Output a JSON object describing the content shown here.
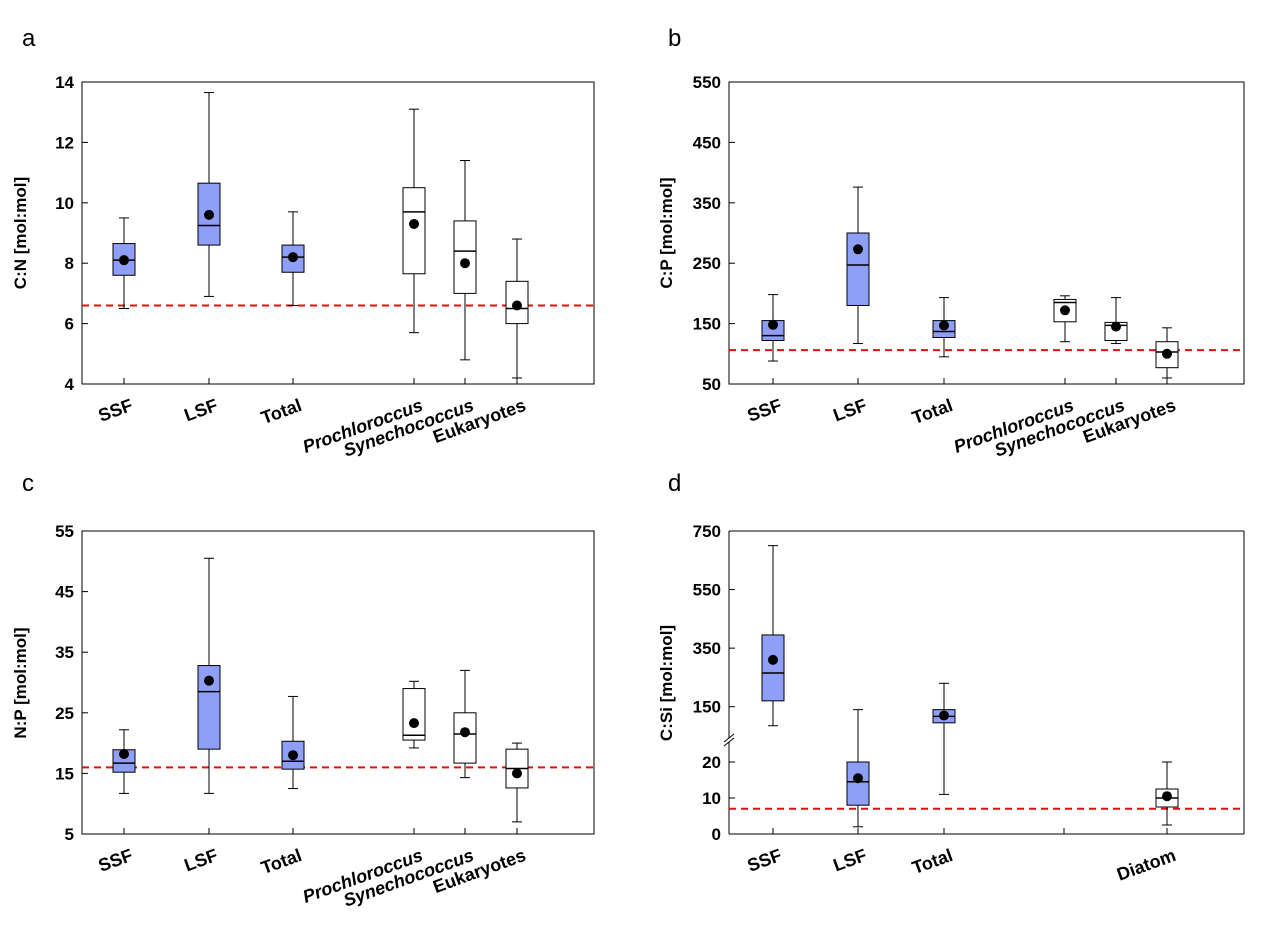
{
  "panels": [
    {
      "letter": "a",
      "ylabel": "C:N [mol:mol]"
    },
    {
      "letter": "b",
      "ylabel": "C:P [mol:mol]"
    },
    {
      "letter": "c",
      "ylabel": "N:P [mol:mol]"
    },
    {
      "letter": "d",
      "ylabel": "C:Si [mol:mol]"
    }
  ],
  "colors": {
    "filled_box": "#8f9ef7",
    "open_box": "#ffffff",
    "reference_line": "#e01010",
    "mean_marker": "#000000"
  },
  "chart_data": [
    {
      "type": "box",
      "panel": "a",
      "ylabel": "C:N [mol:mol]",
      "ylim": [
        4,
        14
      ],
      "yticks": [
        4,
        6,
        8,
        10,
        12,
        14
      ],
      "reference_line": 6.6,
      "categories": [
        "SSF",
        "LSF",
        "Total",
        "Prochloroccus",
        "Synechococcus",
        "Eukaryotes"
      ],
      "italic": [
        false,
        false,
        false,
        true,
        true,
        false
      ],
      "filled": [
        true,
        true,
        true,
        false,
        false,
        false
      ],
      "whisker_low": [
        6.5,
        6.9,
        6.6,
        5.7,
        4.8,
        4.2
      ],
      "q1": [
        7.6,
        8.6,
        7.7,
        7.65,
        7.0,
        6.0
      ],
      "median": [
        8.1,
        9.25,
        8.2,
        9.7,
        8.4,
        6.5
      ],
      "q3": [
        8.65,
        10.65,
        8.6,
        10.5,
        9.4,
        7.4
      ],
      "whisker_high": [
        9.5,
        13.65,
        9.7,
        13.1,
        11.4,
        8.8
      ],
      "mean": [
        8.1,
        9.6,
        8.2,
        9.3,
        8.0,
        6.6
      ]
    },
    {
      "type": "box",
      "panel": "b",
      "ylabel": "C:P [mol:mol]",
      "ylim": [
        50,
        550
      ],
      "yticks": [
        50,
        150,
        250,
        350,
        450,
        550
      ],
      "reference_line": 106,
      "categories": [
        "SSF",
        "LSF",
        "Total",
        "Prochloroccus",
        "Synechococcus",
        "Eukaryotes"
      ],
      "italic": [
        false,
        false,
        false,
        true,
        true,
        false
      ],
      "filled": [
        true,
        true,
        true,
        false,
        false,
        false
      ],
      "whisker_low": [
        88,
        117,
        95,
        120,
        117,
        60
      ],
      "q1": [
        122,
        180,
        127,
        153,
        122,
        77
      ],
      "median": [
        130,
        247,
        137,
        185,
        147,
        103
      ],
      "q3": [
        155,
        300,
        155,
        190,
        152,
        120
      ],
      "whisker_high": [
        198,
        376,
        193,
        196,
        193,
        143
      ],
      "mean": [
        148,
        273,
        147,
        172,
        145,
        100
      ]
    },
    {
      "type": "box",
      "panel": "c",
      "ylabel": "N:P [mol:mol]",
      "ylim": [
        5,
        55
      ],
      "yticks": [
        5,
        15,
        25,
        35,
        45,
        55
      ],
      "reference_line": 16,
      "categories": [
        "SSF",
        "LSF",
        "Total",
        "Prochloroccus",
        "Synechococcus",
        "Eukaryotes"
      ],
      "italic": [
        false,
        false,
        false,
        true,
        true,
        false
      ],
      "filled": [
        true,
        true,
        true,
        false,
        false,
        false
      ],
      "whisker_low": [
        11.7,
        11.7,
        12.5,
        19.2,
        14.3,
        7.0
      ],
      "q1": [
        15.2,
        19.0,
        15.7,
        20.5,
        16.7,
        12.6
      ],
      "median": [
        16.7,
        28.5,
        17.0,
        21.3,
        21.5,
        15.8
      ],
      "q3": [
        18.9,
        32.8,
        20.3,
        29.0,
        25.0,
        19.0
      ],
      "whisker_high": [
        22.2,
        50.5,
        27.7,
        30.2,
        32.0,
        20.0
      ],
      "mean": [
        18.2,
        30.3,
        18.0,
        23.3,
        21.8,
        15.0
      ]
    },
    {
      "type": "box",
      "panel": "d",
      "ylabel": "C:Si [mol:mol]",
      "axis_break": {
        "lower_max": 25,
        "upper_min": 50
      },
      "lower_yticks": [
        0,
        10,
        20
      ],
      "upper_yticks": [
        150,
        350,
        550,
        750
      ],
      "ylim": [
        0,
        750
      ],
      "reference_line": 7,
      "categories": [
        "SSF",
        "LSF",
        "Total",
        "",
        "Diatom"
      ],
      "italic": [
        false,
        false,
        false,
        false,
        false
      ],
      "filled": [
        true,
        true,
        true,
        false,
        false
      ],
      "whisker_low": [
        85,
        2,
        11,
        null,
        2.5
      ],
      "q1": [
        170,
        8,
        95,
        null,
        7.5
      ],
      "median": [
        265,
        14.5,
        117,
        null,
        10
      ],
      "q3": [
        395,
        20,
        140,
        null,
        12.5
      ],
      "whisker_high": [
        700,
        140,
        230,
        null,
        20
      ],
      "mean": [
        310,
        15.5,
        120,
        null,
        10.5
      ]
    }
  ]
}
